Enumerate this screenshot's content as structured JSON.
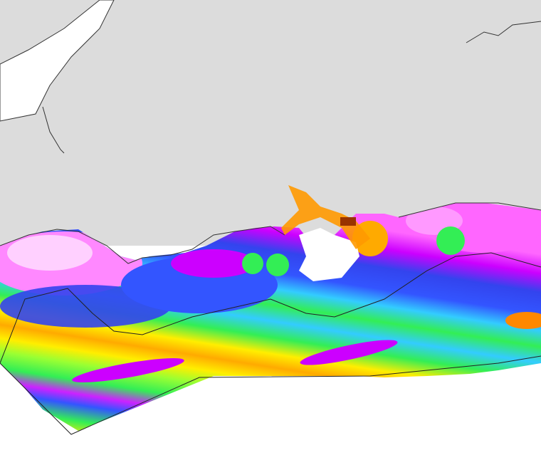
{
  "map": {
    "colors": {
      "land": "#dcdcdc",
      "water_outside": "#ffffff",
      "coastline": "#333333",
      "boundary": "#222222",
      "scale": [
        "#ffe0ff",
        "#ff66ff",
        "#cc00ff",
        "#3355ff",
        "#33ccff",
        "#33ee55",
        "#aaff33",
        "#ffee00",
        "#ffaa00",
        "#ff6600",
        "#993300"
      ]
    },
    "layers": [
      "land",
      "estuary",
      "heatmap",
      "study-area-boundary",
      "coastline"
    ]
  }
}
